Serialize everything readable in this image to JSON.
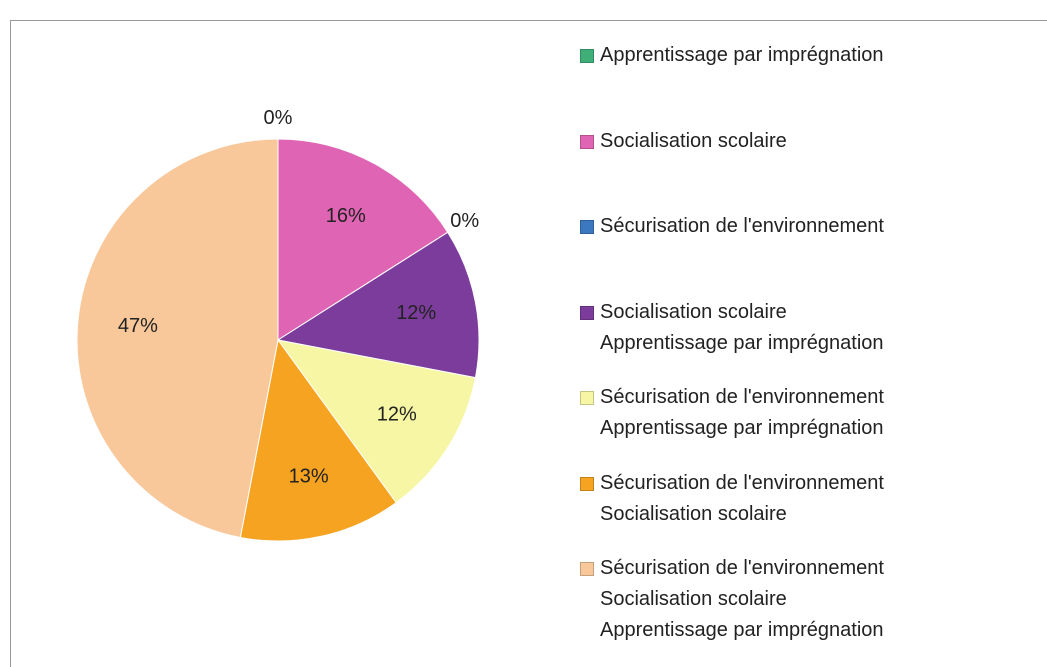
{
  "chart_data": {
    "type": "pie",
    "categories": [
      "Apprentissage par imprégnation",
      "Socialisation scolaire",
      "Sécurisation de l'environnement",
      "Socialisation scolaire\nApprentissage par imprégnation",
      "Sécurisation de l'environnement\nApprentissage par imprégnation",
      "Sécurisation de l'environnement\nSocialisation scolaire",
      "Sécurisation de l'environnement\nSocialisation scolaire\nApprentissage par imprégnation"
    ],
    "values": [
      0,
      16,
      0,
      12,
      12,
      13,
      47
    ],
    "value_labels": [
      "0%",
      "16%",
      "0%",
      "12%",
      "12%",
      "13%",
      "47%"
    ],
    "colors": [
      "#3fae78",
      "#e064b4",
      "#3c78c0",
      "#7c3c9c",
      "#f6f6a4",
      "#f5a321",
      "#f8c79a"
    ],
    "legend": "right"
  }
}
